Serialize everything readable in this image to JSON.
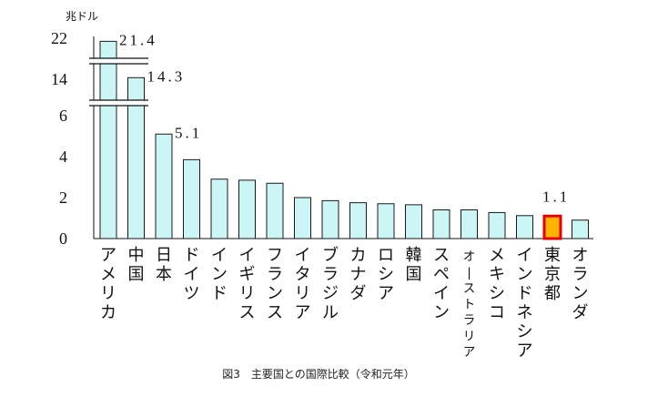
{
  "chart_data": {
    "type": "bar",
    "caption": "図3　主要国との国際比較（令和元年）",
    "unit_label": "兆ドル",
    "y_ticks": [
      "0",
      "2",
      "4",
      "6",
      "14",
      "22"
    ],
    "ylim": [
      0,
      22
    ],
    "axis_break": true,
    "categories": [
      "アメリカ",
      "中国",
      "日本",
      "ドイツ",
      "インド",
      "イギリス",
      "フランス",
      "イタリア",
      "ブラジル",
      "カナダ",
      "ロシア",
      "韓国",
      "スペイン",
      "オーストラリア",
      "メキシコ",
      "インドネシア",
      "東京都",
      "オランダ"
    ],
    "values": [
      21.4,
      14.3,
      5.1,
      3.85,
      2.9,
      2.85,
      2.7,
      2.0,
      1.85,
      1.75,
      1.7,
      1.65,
      1.4,
      1.4,
      1.27,
      1.12,
      1.1,
      0.9
    ],
    "data_labels": [
      {
        "index": 0,
        "text": "21.4"
      },
      {
        "index": 1,
        "text": "14.3"
      },
      {
        "index": 2,
        "text": "5.1"
      },
      {
        "index": 16,
        "text": "1.1"
      }
    ],
    "highlight_index": 16,
    "colors": {
      "bar_fill": "#ccf5f5",
      "bar_stroke": "#1a1a1a",
      "highlight_fill": "#ffb400",
      "highlight_stroke": "#e60000"
    }
  }
}
